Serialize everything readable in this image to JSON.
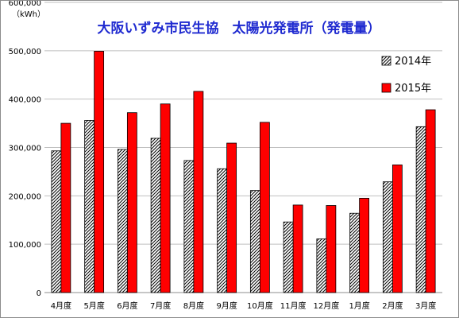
{
  "chart_data": {
    "type": "bar",
    "title": "大阪いずみ市民生協　太陽光発電所（発電量）",
    "ylabel": "（kWh）",
    "xlabel": "",
    "categories": [
      "4月度",
      "5月度",
      "6月度",
      "7月度",
      "8月度",
      "9月度",
      "10月度",
      "11月度",
      "12月度",
      "1月度",
      "2月度",
      "3月度"
    ],
    "series": [
      {
        "name": "2014年",
        "values": [
          293000,
          356000,
          296000,
          319000,
          273000,
          256000,
          211000,
          146000,
          111000,
          164000,
          229000,
          343000
        ]
      },
      {
        "name": "2015年",
        "values": [
          350000,
          499000,
          372000,
          390000,
          416000,
          309000,
          352000,
          181000,
          180000,
          195000,
          264000,
          378000
        ]
      }
    ],
    "ylim": [
      0,
      600000
    ],
    "yticks": [
      0,
      100000,
      200000,
      300000,
      400000,
      500000,
      600000
    ],
    "ytick_labels": [
      "0",
      "100,000",
      "200,000",
      "300,000",
      "400,000",
      "500,000",
      "600,000"
    ],
    "grid": true,
    "legend_position": "top-right",
    "colors": {
      "2014年": "hatched-gray",
      "2015年": "#ff0000",
      "title": "#1f2ad0"
    }
  }
}
